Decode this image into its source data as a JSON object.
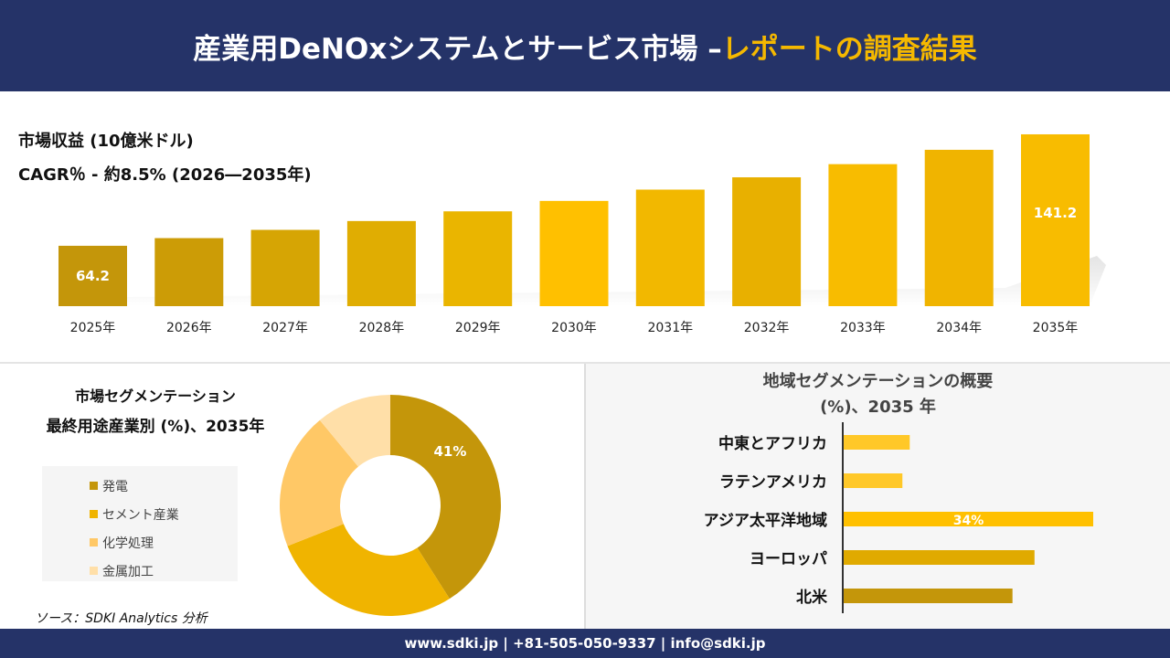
{
  "header": {
    "title_main": "産業用DeNOxシステムとサービス市場 –",
    "title_highlight": "レポートの調査結果"
  },
  "colors": {
    "navy": "#253368",
    "accent": "#f5b800"
  },
  "chart_data": [
    {
      "type": "bar",
      "title": "市場収益 (10億米ドル)",
      "subtitle": "CAGR％ - 約8.5% (2026―2035年)",
      "categories": [
        "2025年",
        "2026年",
        "2027年",
        "2028年",
        "2029年",
        "2030年",
        "2031年",
        "2032年",
        "2033年",
        "2034年",
        "2035年"
      ],
      "values": [
        64.2,
        69.5,
        75.2,
        81.3,
        88.0,
        95.2,
        103.0,
        111.5,
        120.6,
        130.5,
        141.2
      ],
      "data_labels": {
        "0": "64.2",
        "10": "141.2"
      },
      "colors": [
        "#c4960a",
        "#cc9c06",
        "#d6a504",
        "#e0ad02",
        "#eab500",
        "#ffc000",
        "#f2b800",
        "#e8b000",
        "#f8bc00",
        "#f0b400",
        "#f8bc00"
      ]
    },
    {
      "type": "pie",
      "title": "市場セグメンテーション",
      "subtitle": "最終用途産業別 (%)、2035年",
      "categories": [
        "発電",
        "セメント産業",
        "化学処理",
        "金属加工"
      ],
      "values": [
        41,
        28,
        20,
        11
      ],
      "data_labels": [
        "41%",
        "",
        "",
        ""
      ],
      "colors": [
        "#c4960a",
        "#f0b400",
        "#ffc866",
        "#ffdfa8"
      ],
      "legend": "left"
    },
    {
      "type": "bar",
      "orientation": "horizontal",
      "title": "地域セグメンテーションの概要 (%)、2035 年",
      "categories": [
        "中東とアフリカ",
        "ラテンアメリカ",
        "アジア太平洋地域",
        "ヨーロッパ",
        "北米"
      ],
      "values": [
        9,
        8,
        34,
        26,
        23
      ],
      "data_labels": [
        "",
        "",
        "34%",
        "",
        ""
      ],
      "colors": [
        "#ffc828",
        "#ffc828",
        "#ffc000",
        "#e0aa00",
        "#c4960a"
      ]
    }
  ],
  "source": "ソース：SDKI Analytics 分析",
  "footer": "www.sdki.jp | +81-505-050-9337 | info@sdki.jp"
}
